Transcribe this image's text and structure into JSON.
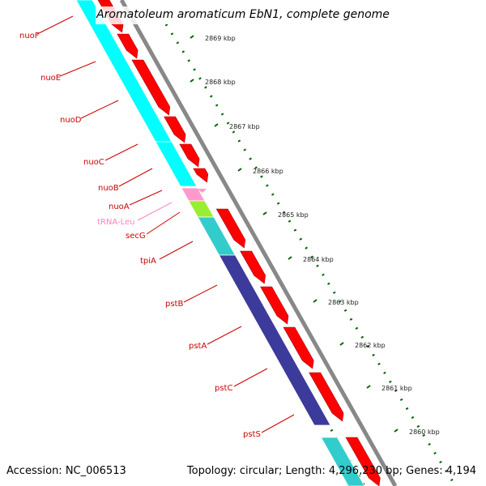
{
  "title": "Aromatoleum aromaticum EbN1, complete genome",
  "footer": {
    "accession": "Accession: NC_006513",
    "topology": "Topology: circular; Length: 4,296,230 bp; Genes: 4,194"
  },
  "colors": {
    "cds": "#ff0000",
    "gene_bar": "#00ffff",
    "gene_bar_dark": "#33cccc",
    "trna_bar": "#ff99cc",
    "secg_bar": "#99ee33",
    "pst_bar": "#3c3a9a",
    "label": "#cc0000",
    "trna_label": "#ff80c0",
    "tick": "#006400",
    "backbone": "#888888"
  },
  "kbp_ticks": [
    "2869 kbp",
    "2868 kbp",
    "2867 kbp",
    "2866 kbp",
    "2865 kbp",
    "2864 kbp",
    "2863 kbp",
    "2862 kbp",
    "2861 kbp",
    "2860 kbp"
  ],
  "genes": [
    {
      "name": "nuoF",
      "label_color": "label"
    },
    {
      "name": "nuoE",
      "label_color": "label"
    },
    {
      "name": "nuoD",
      "label_color": "label"
    },
    {
      "name": "nuoC",
      "label_color": "label"
    },
    {
      "name": "nuoB",
      "label_color": "label"
    },
    {
      "name": "nuoA",
      "label_color": "label"
    },
    {
      "name": "tRNA-Leu",
      "label_color": "trna_label"
    },
    {
      "name": "secG",
      "label_color": "label"
    },
    {
      "name": "tpiA",
      "label_color": "label"
    },
    {
      "name": "pstB",
      "label_color": "label"
    },
    {
      "name": "pstA",
      "label_color": "label"
    },
    {
      "name": "pstC",
      "label_color": "label"
    },
    {
      "name": "pstS",
      "label_color": "label"
    }
  ]
}
